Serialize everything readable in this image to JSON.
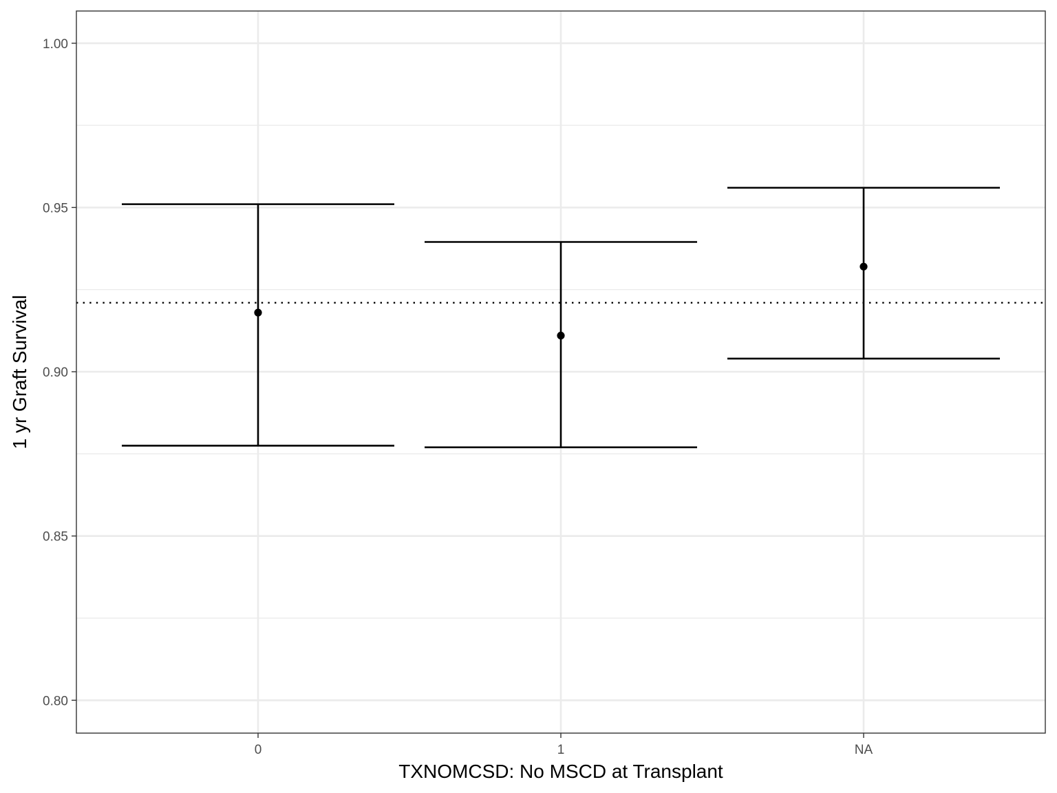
{
  "chart_data": {
    "type": "errorbar",
    "title": "",
    "xlabel": "TXNOMCSD: No MSCD at Transplant",
    "ylabel": "1 yr Graft Survival",
    "categories": [
      "0",
      "1",
      "NA"
    ],
    "series": [
      {
        "values": [
          0.918,
          0.911,
          0.932
        ],
        "lower": [
          0.8775,
          0.877,
          0.904
        ],
        "upper": [
          0.951,
          0.9395,
          0.956
        ]
      }
    ],
    "reference_line": {
      "y": 0.921,
      "style": "dotted"
    },
    "ylim": [
      0.79,
      1.0098
    ],
    "yticks": [
      0.8,
      0.85,
      0.9,
      0.95,
      1.0
    ],
    "ytick_labels": [
      "0.80",
      "0.85",
      "0.90",
      "0.95",
      "1.00"
    ],
    "grid": true,
    "legend": "none",
    "colors": {
      "mark": "#000000",
      "grid": "#ebebeb",
      "panel_border": "#333333",
      "tick_text": "#4d4d4d"
    }
  }
}
